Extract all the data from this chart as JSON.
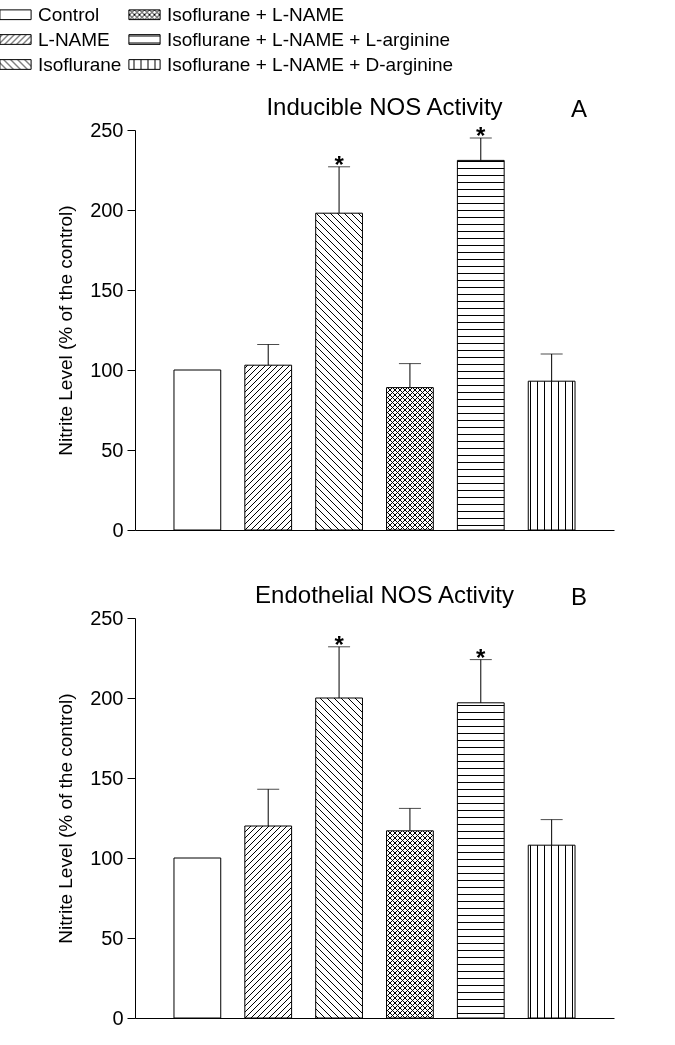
{
  "chart_data": [
    {
      "type": "bar",
      "title": "Inducible NOS Activity",
      "ylabel": "Nitrite Level (% of the control)",
      "categories": [
        null
      ],
      "series": [
        {
          "name": "Control",
          "values": [
            100
          ]
        },
        {
          "name": "L-NAME",
          "values": [
            103
          ],
          "errors": [
            [
              103,
              116
            ]
          ]
        },
        {
          "name": "Isoflurane",
          "values": [
            198
          ],
          "errors": [
            [
              198,
              227
            ]
          ]
        },
        {
          "name": "Isoflurane + L-NAME",
          "values": [
            89
          ],
          "errors": [
            [
              89,
              104
            ]
          ]
        },
        {
          "name": "Isoflurane + L-NAME + L-arginine",
          "values": [
            231
          ],
          "errors": [
            [
              231,
              245
            ]
          ]
        },
        {
          "name": "Isoflurane + L-NAME + D-arginine",
          "values": [
            93
          ],
          "errors": [
            [
              93,
              110
            ]
          ]
        }
      ],
      "ylim": [
        0,
        250
      ],
      "yticks": [
        0,
        50,
        100,
        150,
        200,
        250
      ],
      "tick_labels": "y",
      "grid": false,
      "legend": "top",
      "annotations": [
        "A",
        "*",
        "*"
      ]
    },
    {
      "type": "bar",
      "title": "Endothelial NOS Activity",
      "ylabel": "Nitrite Level (% of the control)",
      "categories": [
        null
      ],
      "series": [
        {
          "values": [
            100
          ]
        },
        {
          "values": [
            120
          ],
          "errors": [
            [
              120,
              143
            ]
          ]
        },
        {
          "values": [
            200
          ],
          "errors": [
            [
              200,
              232
            ]
          ]
        },
        {
          "values": [
            117
          ],
          "errors": [
            [
              117,
              131
            ]
          ]
        },
        {
          "values": [
            197
          ],
          "errors": [
            [
              197,
              224
            ]
          ]
        },
        {
          "values": [
            108
          ],
          "errors": [
            [
              108,
              124
            ]
          ]
        }
      ],
      "ylim": [
        0,
        250
      ],
      "yticks": [
        0,
        50,
        100,
        150,
        200,
        250
      ],
      "tick_labels": "y",
      "grid": false,
      "annotations": [
        "B",
        "*",
        "*"
      ]
    }
  ]
}
